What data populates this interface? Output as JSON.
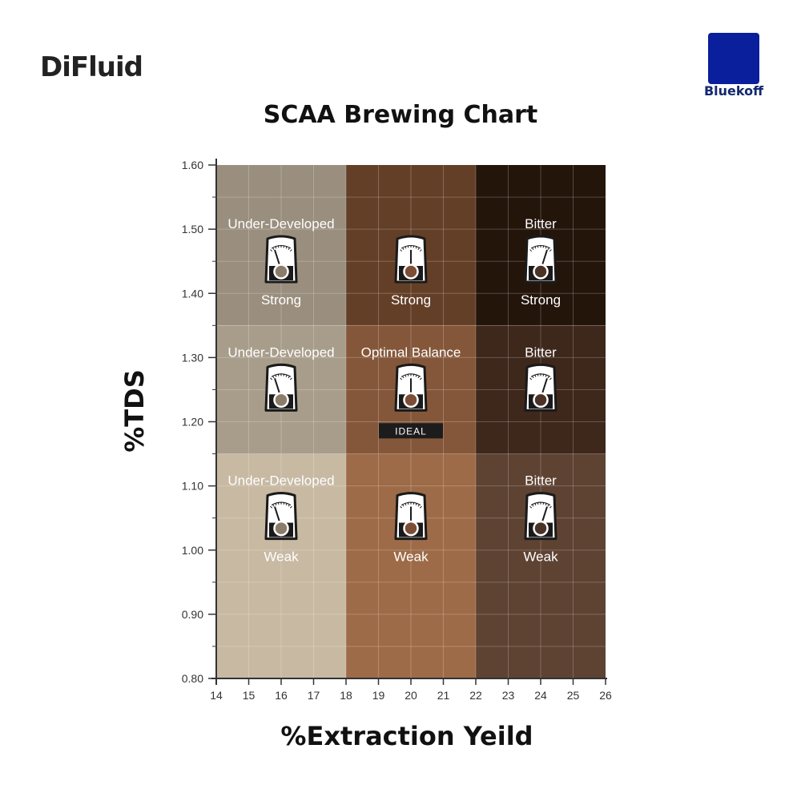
{
  "header": {
    "brand": "DiFluid",
    "logo_text": "Bluekoff",
    "logo_color": "#0a1f9c"
  },
  "chart_data": {
    "type": "heatmap",
    "title": "SCAA Brewing Chart",
    "xlabel": "%Extraction Yeild",
    "ylabel": "%TDS",
    "xlim": [
      14,
      26
    ],
    "ylim": [
      0.8,
      1.6
    ],
    "x_ticks": [
      "14",
      "15",
      "16",
      "17",
      "18",
      "19",
      "20",
      "21",
      "22",
      "23",
      "24",
      "25",
      "26"
    ],
    "y_ticks": [
      "0.80",
      "0.90",
      "1.00",
      "1.10",
      "1.20",
      "1.30",
      "1.40",
      "1.50",
      "1.60"
    ],
    "grid": true,
    "regions": [
      {
        "x": [
          14,
          18
        ],
        "y": [
          1.35,
          1.6
        ],
        "label": "Under-Developed",
        "sublabel": "Strong",
        "color": "#9a8f7e",
        "gauge": "left"
      },
      {
        "x": [
          18,
          22
        ],
        "y": [
          1.35,
          1.6
        ],
        "label": "",
        "sublabel": "Strong",
        "color": "#643f27",
        "gauge": "center"
      },
      {
        "x": [
          22,
          26
        ],
        "y": [
          1.35,
          1.6
        ],
        "label": "Bitter",
        "sublabel": "Strong",
        "color": "#24150b",
        "gauge": "right"
      },
      {
        "x": [
          14,
          18
        ],
        "y": [
          1.15,
          1.35
        ],
        "label": "Under-Developed",
        "sublabel": "",
        "color": "#a89d8b",
        "gauge": "left"
      },
      {
        "x": [
          18,
          22
        ],
        "y": [
          1.15,
          1.35
        ],
        "label": "Optimal Balance",
        "sublabel": "",
        "badge": "IDEAL",
        "color": "#85573a",
        "gauge": "center"
      },
      {
        "x": [
          22,
          26
        ],
        "y": [
          1.15,
          1.35
        ],
        "label": "Bitter",
        "sublabel": "",
        "color": "#3e271b",
        "gauge": "right"
      },
      {
        "x": [
          14,
          18
        ],
        "y": [
          0.8,
          1.15
        ],
        "label": "Under-Developed",
        "sublabel": "Weak",
        "color": "#c8b9a3",
        "gauge": "left"
      },
      {
        "x": [
          18,
          22
        ],
        "y": [
          0.8,
          1.15
        ],
        "label": "",
        "sublabel": "Weak",
        "color": "#9d6b48",
        "gauge": "center"
      },
      {
        "x": [
          22,
          26
        ],
        "y": [
          0.8,
          1.15
        ],
        "label": "Bitter",
        "sublabel": "Weak",
        "color": "#5e4232",
        "gauge": "right"
      }
    ]
  }
}
